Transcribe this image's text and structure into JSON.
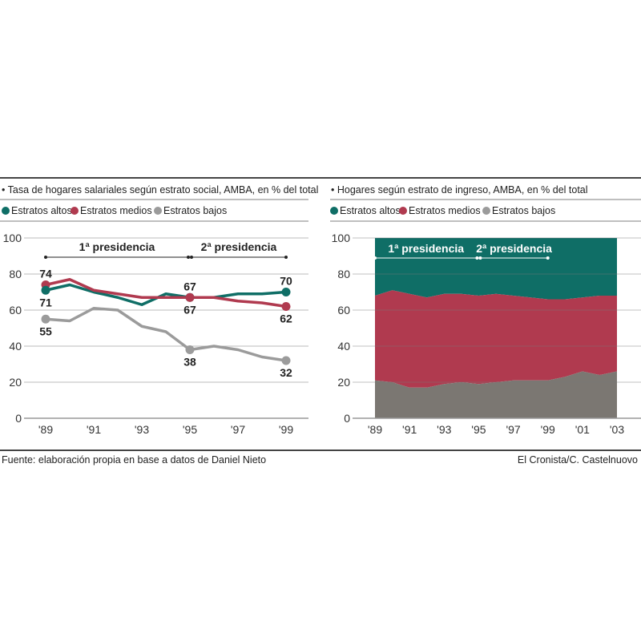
{
  "colors": {
    "altos": "#0f6e66",
    "medios": "#b03a4f",
    "bajos_line": "#9b9b9b",
    "bajos_area": "#7b7772"
  },
  "footer": {
    "source": "Fuente: elaboración propia en base a datos de Daniel Nieto",
    "credit": "El Cronista/C. Castelnuovo"
  },
  "chart_data": [
    {
      "type": "line",
      "title": "• Tasa de hogares salariales según estrato social, AMBA, en % del total",
      "legend": [
        "Estratos altos",
        "Estratos medios",
        "Estratos bajos"
      ],
      "legend_position": "top-left",
      "x": [
        1989,
        1990,
        1991,
        1992,
        1993,
        1994,
        1995,
        1996,
        1997,
        1998,
        1999
      ],
      "x_tick_labels": [
        "'89",
        "'91",
        "'93",
        "'95",
        "'97",
        "'99"
      ],
      "y_ticks": [
        "0",
        "20",
        "40",
        "60",
        "80",
        "100"
      ],
      "ylim": [
        0,
        100
      ],
      "grid": true,
      "series": [
        {
          "name": "Estratos altos",
          "values": [
            71,
            74,
            70,
            67,
            63,
            69,
            67,
            67,
            69,
            69,
            70
          ]
        },
        {
          "name": "Estratos medios",
          "values": [
            74,
            77,
            71,
            69,
            67,
            67,
            67,
            67,
            65,
            64,
            62
          ]
        },
        {
          "name": "Estratos bajos",
          "values": [
            55,
            54,
            61,
            60,
            51,
            48,
            38,
            40,
            38,
            34,
            32
          ]
        }
      ],
      "data_labels": [
        {
          "series": "Estratos medios",
          "x": 1989,
          "text": "74",
          "pos": "above"
        },
        {
          "series": "Estratos altos",
          "x": 1989,
          "text": "71",
          "pos": "below"
        },
        {
          "series": "Estratos bajos",
          "x": 1989,
          "text": "55",
          "pos": "below"
        },
        {
          "series": "Estratos altos",
          "x": 1995,
          "text": "67",
          "pos": "above"
        },
        {
          "series": "Estratos medios",
          "x": 1995,
          "text": "67",
          "pos": "below"
        },
        {
          "series": "Estratos bajos",
          "x": 1995,
          "text": "38",
          "pos": "below"
        },
        {
          "series": "Estratos altos",
          "x": 1999,
          "text": "70",
          "pos": "above"
        },
        {
          "series": "Estratos medios",
          "x": 1999,
          "text": "62",
          "pos": "below"
        },
        {
          "series": "Estratos bajos",
          "x": 1999,
          "text": "32",
          "pos": "below"
        }
      ],
      "annotations": [
        {
          "text": "1ª presidencia",
          "from": 1989,
          "to": 1995
        },
        {
          "text": "2ª presidencia",
          "from": 1995,
          "to": 1999
        }
      ]
    },
    {
      "type": "area",
      "stacked": true,
      "title": "• Hogares según estrato de ingreso, AMBA, en % del total",
      "legend": [
        "Estratos altos",
        "Estratos medios",
        "Estratos bajos"
      ],
      "legend_position": "top-left",
      "x": [
        1989,
        1990,
        1991,
        1992,
        1993,
        1994,
        1995,
        1996,
        1997,
        1998,
        1999,
        2000,
        2001,
        2002,
        2003
      ],
      "x_tick_labels": [
        "'89",
        "'91",
        "'93",
        "'95",
        "'97",
        "'99",
        "'01",
        "'03"
      ],
      "y_ticks": [
        "0",
        "20",
        "40",
        "60",
        "80",
        "100"
      ],
      "ylim": [
        0,
        100
      ],
      "grid": true,
      "series": [
        {
          "name": "Estratos bajos",
          "values": [
            21,
            20,
            17,
            17,
            19,
            20,
            19,
            20,
            21,
            21,
            21,
            23,
            26,
            24,
            26
          ]
        },
        {
          "name": "Estratos medios",
          "values": [
            47,
            51,
            52,
            50,
            50,
            49,
            49,
            49,
            47,
            46,
            45,
            43,
            41,
            44,
            42
          ]
        },
        {
          "name": "Estratos altos",
          "values": [
            32,
            29,
            31,
            33,
            31,
            31,
            32,
            31,
            32,
            33,
            34,
            34,
            33,
            32,
            32
          ]
        }
      ],
      "annotations": [
        {
          "text": "1ª presidencia",
          "from": 1989,
          "to": 1995
        },
        {
          "text": "2ª presidencia",
          "from": 1995,
          "to": 1999
        }
      ]
    }
  ]
}
